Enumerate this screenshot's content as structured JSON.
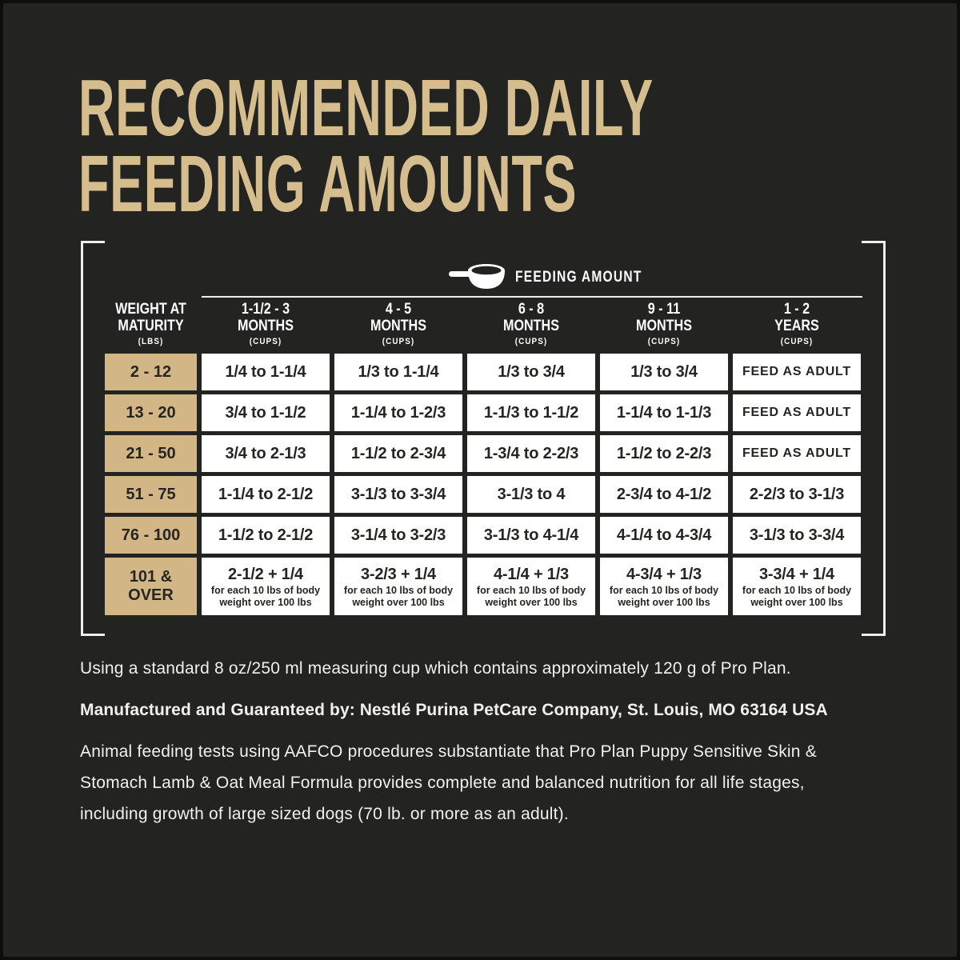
{
  "title": {
    "lines": [
      "RECOMMENDED DAILY",
      "FEEDING AMOUNTS"
    ]
  },
  "legend": {
    "icon": "measuring-cup-icon",
    "label": "FEEDING AMOUNT"
  },
  "table": {
    "weight_header": {
      "lines": [
        "WEIGHT AT",
        "MATURITY"
      ],
      "unit": "(LBS)"
    },
    "columns": [
      {
        "range": "1-1/2 - 3",
        "period": "MONTHS",
        "unit": "(CUPS)"
      },
      {
        "range": "4 - 5",
        "period": "MONTHS",
        "unit": "(CUPS)"
      },
      {
        "range": "6 - 8",
        "period": "MONTHS",
        "unit": "(CUPS)"
      },
      {
        "range": "9 - 11",
        "period": "MONTHS",
        "unit": "(CUPS)"
      },
      {
        "range": "1 - 2",
        "period": "YEARS",
        "unit": "(CUPS)"
      }
    ],
    "rows": [
      {
        "weight": [
          "2 - 12"
        ],
        "cells": [
          {
            "text": "1/4 to 1-1/4"
          },
          {
            "text": "1/3 to 1-1/4"
          },
          {
            "text": "1/3 to 3/4"
          },
          {
            "text": "1/3 to 3/4"
          },
          {
            "text": "FEED AS ADULT",
            "small": true
          }
        ]
      },
      {
        "weight": [
          "13 - 20"
        ],
        "cells": [
          {
            "text": "3/4 to 1-1/2"
          },
          {
            "text": "1-1/4 to 1-2/3"
          },
          {
            "text": "1-1/3 to 1-1/2"
          },
          {
            "text": "1-1/4 to 1-1/3"
          },
          {
            "text": "FEED AS ADULT",
            "small": true
          }
        ]
      },
      {
        "weight": [
          "21 - 50"
        ],
        "cells": [
          {
            "text": "3/4 to 2-1/3"
          },
          {
            "text": "1-1/2 to 2-3/4"
          },
          {
            "text": "1-3/4 to 2-2/3"
          },
          {
            "text": "1-1/2 to 2-2/3"
          },
          {
            "text": "FEED AS ADULT",
            "small": true
          }
        ]
      },
      {
        "weight": [
          "51 - 75"
        ],
        "cells": [
          {
            "text": "1-1/4 to 2-1/2"
          },
          {
            "text": "3-1/3 to 3-3/4"
          },
          {
            "text": "3-1/3 to 4"
          },
          {
            "text": "2-3/4 to 4-1/2"
          },
          {
            "text": "2-2/3 to 3-1/3"
          }
        ]
      },
      {
        "weight": [
          "76 - 100"
        ],
        "cells": [
          {
            "text": "1-1/2 to 2-1/2"
          },
          {
            "text": "3-1/4 to 3-2/3"
          },
          {
            "text": "3-1/3 to 4-1/4"
          },
          {
            "text": "4-1/4 to 4-3/4"
          },
          {
            "text": "3-1/3 to 3-3/4"
          }
        ]
      },
      {
        "weight": [
          "101 &",
          "OVER"
        ],
        "cells": [
          {
            "text": "2-1/2 + 1/4",
            "note": [
              "for each 10 lbs of body",
              "weight over 100 lbs"
            ]
          },
          {
            "text": "3-2/3 + 1/4",
            "note": [
              "for each 10 lbs of body",
              "weight over 100 lbs"
            ]
          },
          {
            "text": "4-1/4 + 1/3",
            "note": [
              "for each 10 lbs of body",
              "weight over 100 lbs"
            ]
          },
          {
            "text": "4-3/4 + 1/3",
            "note": [
              "for each 10 lbs of body",
              "weight over 100 lbs"
            ]
          },
          {
            "text": "3-3/4 + 1/4",
            "note": [
              "for each 10 lbs of body",
              "weight over 100 lbs"
            ]
          }
        ]
      }
    ]
  },
  "footnotes": {
    "measuring_cup": "Using a standard 8 oz/250 ml measuring cup which contains approximately 120 g of Pro Plan.",
    "manufacturer": "Manufactured and Guaranteed by: Nestlé Purina PetCare Company, St. Louis, MO 63164 USA",
    "aafco_lines": [
      "Animal feeding tests using AAFCO procedures substantiate that Pro Plan Puppy Sensitive Skin &",
      "Stomach Lamb & Oat Meal Formula provides complete and balanced nutrition for all life stages,",
      "including growth of large sized dogs (70 lb. or more as an adult)."
    ]
  },
  "colors": {
    "background": "#232321",
    "accent_tan": "#d5bd8e",
    "cell_tan": "#d3b685",
    "cell_white": "#ffffff",
    "text_dark": "#262522",
    "text_light": "#f1f0ee"
  }
}
